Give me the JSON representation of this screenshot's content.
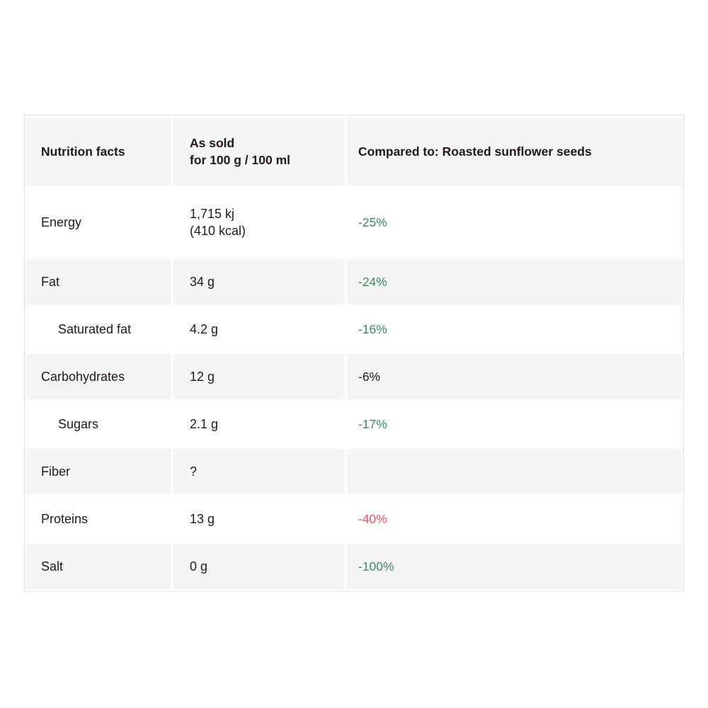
{
  "table": {
    "header": {
      "nutrition_facts": "Nutrition facts",
      "as_sold_line1": "As sold",
      "as_sold_line2": "for 100 g / 100 ml",
      "compared_to": "Compared to: Roasted sunflower seeds"
    },
    "rows": [
      {
        "label": "Energy",
        "value": "1,715 kj",
        "value2": "(410 kcal)",
        "comparison": "-25%",
        "tone": "green",
        "indented": false
      },
      {
        "label": "Fat",
        "value": "34 g",
        "comparison": "-24%",
        "tone": "green",
        "indented": false
      },
      {
        "label": "Saturated fat",
        "value": "4.2 g",
        "comparison": "-16%",
        "tone": "green",
        "indented": true
      },
      {
        "label": "Carbohydrates",
        "value": "12 g",
        "comparison": "-6%",
        "tone": "neutral",
        "indented": false
      },
      {
        "label": "Sugars",
        "value": "2.1 g",
        "comparison": "-17%",
        "tone": "green",
        "indented": true
      },
      {
        "label": "Fiber",
        "value": "?",
        "comparison": "",
        "tone": "none",
        "indented": false
      },
      {
        "label": "Proteins",
        "value": "13 g",
        "comparison": "-40%",
        "tone": "red",
        "indented": false
      },
      {
        "label": "Salt",
        "value": "0 g",
        "comparison": "-100%",
        "tone": "green",
        "indented": false
      }
    ],
    "colors": {
      "positive_green": "#3e8a5e",
      "negative_red": "#e25763",
      "text": "#201a17",
      "stripe_background": "#f5f5f5",
      "table_border": "#e2e2e2"
    }
  }
}
